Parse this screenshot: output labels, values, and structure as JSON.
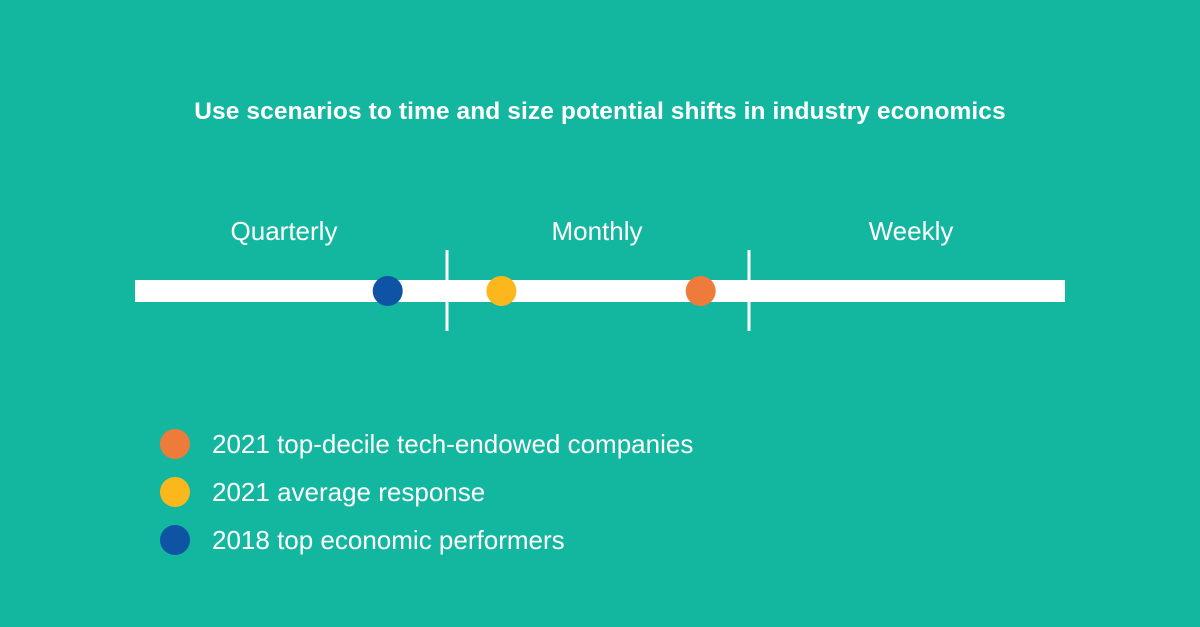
{
  "chart_data": {
    "type": "scatter",
    "title": "Use scenarios to time and size potential shifts in industry economics",
    "xlabel": "",
    "ylabel": "",
    "categories": [
      "Quarterly",
      "Monthly",
      "Weekly"
    ],
    "series": [
      {
        "name": "2021 top-decile tech-endowed companies",
        "color": "#EE7B3A",
        "position": 1.84
      },
      {
        "name": "2021 average response",
        "color": "#FBB71C",
        "position": 1.18
      },
      {
        "name": "2018 top economic performers",
        "color": "#0F54A4",
        "position": 0.81
      }
    ],
    "position_scale": "0 = start of Quarterly band, 1 = Quarterly/Monthly boundary, 2 = Monthly/Weekly boundary, 3 = end of Weekly band",
    "xlim": [
      0,
      3
    ],
    "grid": false,
    "legend_position": "bottom-left"
  },
  "colors": {
    "background": "#13B7A0",
    "track": "#FFFFFF",
    "text": "#FFFFFF"
  }
}
